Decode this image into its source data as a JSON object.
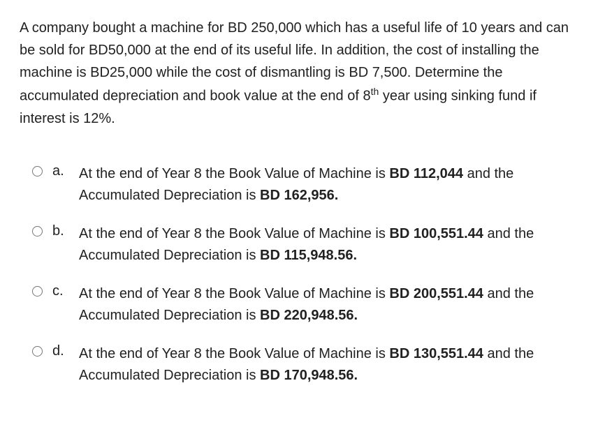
{
  "question": {
    "text_parts": {
      "p1": "A company bought a machine for BD 250,000 which has a useful life of 10 years and can be sold for BD50,000 at the end of its useful life. In addition, the cost of installing the machine is BD25,000 while the cost of dismantling is BD 7,500. Determine the accumulated depreciation and book value at the end of 8",
      "sup": "th",
      "p2": " year using sinking fund if interest is 12%."
    }
  },
  "options": [
    {
      "letter": "a.",
      "prefix": "At the end of Year 8 the  Book Value of Machine is ",
      "bv": "BD 112,044",
      "mid": " and the Accumulated Depreciation is ",
      "ad": "BD 162,956."
    },
    {
      "letter": "b.",
      "prefix": "At the end of Year 8 the  Book Value of Machine is ",
      "bv": "BD 100,551.44",
      "mid": " and the Accumulated Depreciation is ",
      "ad": "BD 115,948.56."
    },
    {
      "letter": "c.",
      "prefix": "At the end of Year 8 the  Book Value of Machine is ",
      "bv": "BD 200,551.44",
      "mid": " and the Accumulated Depreciation is ",
      "ad": "BD 220,948.56."
    },
    {
      "letter": "d.",
      "prefix": "At the end of Year 8 the  Book Value of Machine is ",
      "bv": "BD 130,551.44",
      "mid": " and the Accumulated Depreciation is ",
      "ad": "BD 170,948.56."
    }
  ],
  "styling": {
    "background_color": "#ffffff",
    "text_color": "#212121",
    "font_size_pt": 20,
    "font_family": "Arial",
    "line_height": 1.6,
    "bold_weight": 700
  }
}
